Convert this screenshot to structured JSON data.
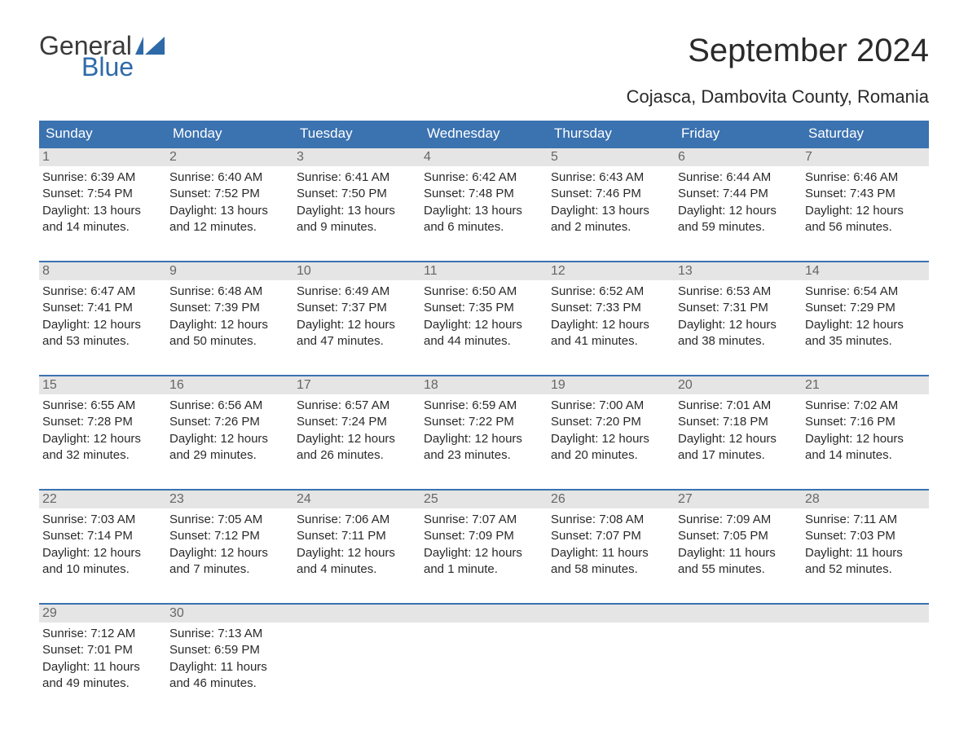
{
  "logo": {
    "word1": "General",
    "word2": "Blue"
  },
  "title": "September 2024",
  "subtitle": "Cojasca, Dambovita County, Romania",
  "colors": {
    "header_bg": "#3b72b0",
    "header_text": "#ffffff",
    "daynum_bg": "#e5e5e5",
    "daynum_text": "#666666",
    "border_top": "#3b72b0",
    "body_text": "#2a2a2a",
    "logo_gray": "#3a3a3a",
    "logo_blue": "#2e6aa8",
    "page_bg": "#ffffff"
  },
  "typography": {
    "title_fontsize": 40,
    "subtitle_fontsize": 22,
    "header_fontsize": 17,
    "daynum_fontsize": 16,
    "cell_fontsize": 15,
    "logo_fontsize": 32
  },
  "day_headers": [
    "Sunday",
    "Monday",
    "Tuesday",
    "Wednesday",
    "Thursday",
    "Friday",
    "Saturday"
  ],
  "weeks": [
    [
      {
        "num": "1",
        "sunrise": "Sunrise: 6:39 AM",
        "sunset": "Sunset: 7:54 PM",
        "d1": "Daylight: 13 hours",
        "d2": "and 14 minutes."
      },
      {
        "num": "2",
        "sunrise": "Sunrise: 6:40 AM",
        "sunset": "Sunset: 7:52 PM",
        "d1": "Daylight: 13 hours",
        "d2": "and 12 minutes."
      },
      {
        "num": "3",
        "sunrise": "Sunrise: 6:41 AM",
        "sunset": "Sunset: 7:50 PM",
        "d1": "Daylight: 13 hours",
        "d2": "and 9 minutes."
      },
      {
        "num": "4",
        "sunrise": "Sunrise: 6:42 AM",
        "sunset": "Sunset: 7:48 PM",
        "d1": "Daylight: 13 hours",
        "d2": "and 6 minutes."
      },
      {
        "num": "5",
        "sunrise": "Sunrise: 6:43 AM",
        "sunset": "Sunset: 7:46 PM",
        "d1": "Daylight: 13 hours",
        "d2": "and 2 minutes."
      },
      {
        "num": "6",
        "sunrise": "Sunrise: 6:44 AM",
        "sunset": "Sunset: 7:44 PM",
        "d1": "Daylight: 12 hours",
        "d2": "and 59 minutes."
      },
      {
        "num": "7",
        "sunrise": "Sunrise: 6:46 AM",
        "sunset": "Sunset: 7:43 PM",
        "d1": "Daylight: 12 hours",
        "d2": "and 56 minutes."
      }
    ],
    [
      {
        "num": "8",
        "sunrise": "Sunrise: 6:47 AM",
        "sunset": "Sunset: 7:41 PM",
        "d1": "Daylight: 12 hours",
        "d2": "and 53 minutes."
      },
      {
        "num": "9",
        "sunrise": "Sunrise: 6:48 AM",
        "sunset": "Sunset: 7:39 PM",
        "d1": "Daylight: 12 hours",
        "d2": "and 50 minutes."
      },
      {
        "num": "10",
        "sunrise": "Sunrise: 6:49 AM",
        "sunset": "Sunset: 7:37 PM",
        "d1": "Daylight: 12 hours",
        "d2": "and 47 minutes."
      },
      {
        "num": "11",
        "sunrise": "Sunrise: 6:50 AM",
        "sunset": "Sunset: 7:35 PM",
        "d1": "Daylight: 12 hours",
        "d2": "and 44 minutes."
      },
      {
        "num": "12",
        "sunrise": "Sunrise: 6:52 AM",
        "sunset": "Sunset: 7:33 PM",
        "d1": "Daylight: 12 hours",
        "d2": "and 41 minutes."
      },
      {
        "num": "13",
        "sunrise": "Sunrise: 6:53 AM",
        "sunset": "Sunset: 7:31 PM",
        "d1": "Daylight: 12 hours",
        "d2": "and 38 minutes."
      },
      {
        "num": "14",
        "sunrise": "Sunrise: 6:54 AM",
        "sunset": "Sunset: 7:29 PM",
        "d1": "Daylight: 12 hours",
        "d2": "and 35 minutes."
      }
    ],
    [
      {
        "num": "15",
        "sunrise": "Sunrise: 6:55 AM",
        "sunset": "Sunset: 7:28 PM",
        "d1": "Daylight: 12 hours",
        "d2": "and 32 minutes."
      },
      {
        "num": "16",
        "sunrise": "Sunrise: 6:56 AM",
        "sunset": "Sunset: 7:26 PM",
        "d1": "Daylight: 12 hours",
        "d2": "and 29 minutes."
      },
      {
        "num": "17",
        "sunrise": "Sunrise: 6:57 AM",
        "sunset": "Sunset: 7:24 PM",
        "d1": "Daylight: 12 hours",
        "d2": "and 26 minutes."
      },
      {
        "num": "18",
        "sunrise": "Sunrise: 6:59 AM",
        "sunset": "Sunset: 7:22 PM",
        "d1": "Daylight: 12 hours",
        "d2": "and 23 minutes."
      },
      {
        "num": "19",
        "sunrise": "Sunrise: 7:00 AM",
        "sunset": "Sunset: 7:20 PM",
        "d1": "Daylight: 12 hours",
        "d2": "and 20 minutes."
      },
      {
        "num": "20",
        "sunrise": "Sunrise: 7:01 AM",
        "sunset": "Sunset: 7:18 PM",
        "d1": "Daylight: 12 hours",
        "d2": "and 17 minutes."
      },
      {
        "num": "21",
        "sunrise": "Sunrise: 7:02 AM",
        "sunset": "Sunset: 7:16 PM",
        "d1": "Daylight: 12 hours",
        "d2": "and 14 minutes."
      }
    ],
    [
      {
        "num": "22",
        "sunrise": "Sunrise: 7:03 AM",
        "sunset": "Sunset: 7:14 PM",
        "d1": "Daylight: 12 hours",
        "d2": "and 10 minutes."
      },
      {
        "num": "23",
        "sunrise": "Sunrise: 7:05 AM",
        "sunset": "Sunset: 7:12 PM",
        "d1": "Daylight: 12 hours",
        "d2": "and 7 minutes."
      },
      {
        "num": "24",
        "sunrise": "Sunrise: 7:06 AM",
        "sunset": "Sunset: 7:11 PM",
        "d1": "Daylight: 12 hours",
        "d2": "and 4 minutes."
      },
      {
        "num": "25",
        "sunrise": "Sunrise: 7:07 AM",
        "sunset": "Sunset: 7:09 PM",
        "d1": "Daylight: 12 hours",
        "d2": "and 1 minute."
      },
      {
        "num": "26",
        "sunrise": "Sunrise: 7:08 AM",
        "sunset": "Sunset: 7:07 PM",
        "d1": "Daylight: 11 hours",
        "d2": "and 58 minutes."
      },
      {
        "num": "27",
        "sunrise": "Sunrise: 7:09 AM",
        "sunset": "Sunset: 7:05 PM",
        "d1": "Daylight: 11 hours",
        "d2": "and 55 minutes."
      },
      {
        "num": "28",
        "sunrise": "Sunrise: 7:11 AM",
        "sunset": "Sunset: 7:03 PM",
        "d1": "Daylight: 11 hours",
        "d2": "and 52 minutes."
      }
    ],
    [
      {
        "num": "29",
        "sunrise": "Sunrise: 7:12 AM",
        "sunset": "Sunset: 7:01 PM",
        "d1": "Daylight: 11 hours",
        "d2": "and 49 minutes."
      },
      {
        "num": "30",
        "sunrise": "Sunrise: 7:13 AM",
        "sunset": "Sunset: 6:59 PM",
        "d1": "Daylight: 11 hours",
        "d2": "and 46 minutes."
      },
      null,
      null,
      null,
      null,
      null
    ]
  ]
}
